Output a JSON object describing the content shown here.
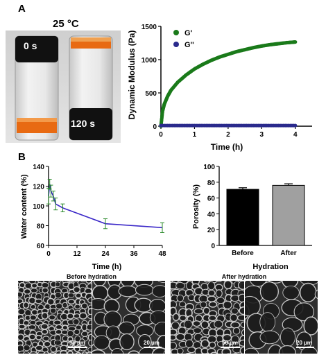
{
  "panel_a": {
    "letter": "A",
    "temperature_label": "25 °C",
    "vial_left_label": "0 s",
    "vial_right_label": "120 s"
  },
  "panel_b": {
    "letter": "B",
    "sem_before_title": "Before hydration",
    "sem_after_title": "After  hydration",
    "scale_labels": [
      "50 µm",
      "20 µm",
      "50 µm",
      "20 µm"
    ]
  },
  "colors": {
    "g_prime": "#1a7a1a",
    "g_double_prime": "#2a2a8c",
    "water_line": "#3b28c8",
    "water_err": "#2a8a2a",
    "bar_before": "#000000",
    "bar_after": "#a0a0a0",
    "vial_orange": "#e86a12",
    "cap_black": "#111111"
  },
  "chart_data": [
    {
      "type": "scatter",
      "ylabel": "Dynamic Modulus (Pa)",
      "xlabel": "Time (h)",
      "xlim": [
        0,
        4.5
      ],
      "ylim": [
        0,
        1500
      ],
      "xticks": [
        0,
        1,
        2,
        3,
        4
      ],
      "yticks": [
        0,
        500,
        1000,
        1500
      ],
      "legend_position": "top-left",
      "series": [
        {
          "name": "G'",
          "x": [
            0,
            0.05,
            0.1,
            0.2,
            0.3,
            0.5,
            0.75,
            1.0,
            1.25,
            1.5,
            1.75,
            2.0,
            2.25,
            2.5,
            2.75,
            3.0,
            3.25,
            3.5,
            3.75,
            4.0
          ],
          "y": [
            0,
            230,
            330,
            450,
            540,
            660,
            770,
            860,
            930,
            990,
            1040,
            1080,
            1120,
            1150,
            1180,
            1205,
            1225,
            1240,
            1255,
            1265
          ]
        },
        {
          "name": "G''",
          "x": [
            0,
            0.5,
            1.0,
            1.5,
            2.0,
            2.5,
            3.0,
            3.5,
            4.0
          ],
          "y": [
            10,
            10,
            10,
            10,
            10,
            10,
            10,
            10,
            10
          ]
        }
      ]
    },
    {
      "type": "line",
      "ylabel": "Water content (%)",
      "xlabel": "Time (h)",
      "xlim": [
        0,
        48
      ],
      "ylim": [
        60,
        140
      ],
      "xticks": [
        0,
        12,
        24,
        36,
        48
      ],
      "yticks": [
        60,
        80,
        100,
        120,
        140
      ],
      "x": [
        0,
        0.5,
        1,
        2,
        3,
        6,
        24,
        48
      ],
      "y": [
        110,
        122,
        115,
        110,
        102,
        98,
        82,
        78
      ],
      "err": [
        8,
        5,
        6,
        5,
        6,
        4,
        5,
        5
      ]
    },
    {
      "type": "bar",
      "ylabel": "Porosity (%)",
      "xlabel": "Hydration",
      "categories": [
        "Before",
        "After"
      ],
      "values": [
        71,
        76
      ],
      "err": [
        2,
        2
      ],
      "ylim": [
        0,
        100
      ],
      "yticks": [
        0,
        20,
        40,
        60,
        80,
        100
      ]
    }
  ]
}
